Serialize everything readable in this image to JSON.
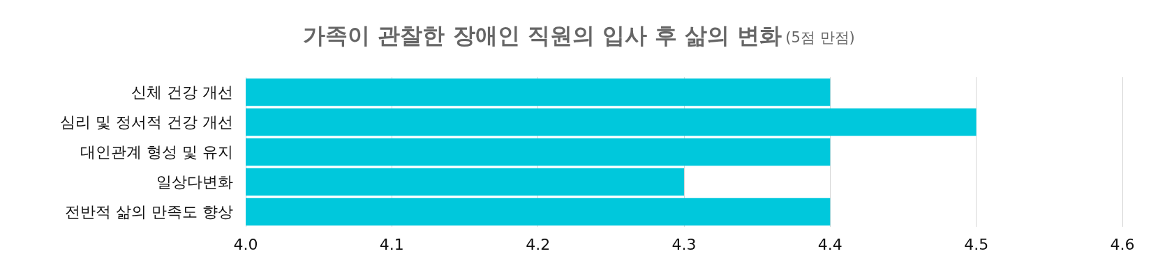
{
  "chart_data": {
    "type": "bar",
    "orientation": "horizontal",
    "title": "가족이 관찰한 장애인 직원의 입사 후 삶의 변화",
    "subtitle": "(5점 만점)",
    "categories": [
      "신체 건강 개선",
      "심리 및 정서적 건강 개선",
      "대인관계 형성 및 유지",
      "일상다변화",
      "전반적 삶의 만족도 향상"
    ],
    "values": [
      4.4,
      4.5,
      4.4,
      4.3,
      4.4
    ],
    "color": "#00c8dc",
    "xlim": [
      4.0,
      4.6
    ],
    "xticks": [
      {
        "value": 4.0,
        "label": "4.0"
      },
      4.1,
      4.2,
      4.3,
      4.4,
      4.5,
      4.6
    ],
    "grid": "x"
  }
}
